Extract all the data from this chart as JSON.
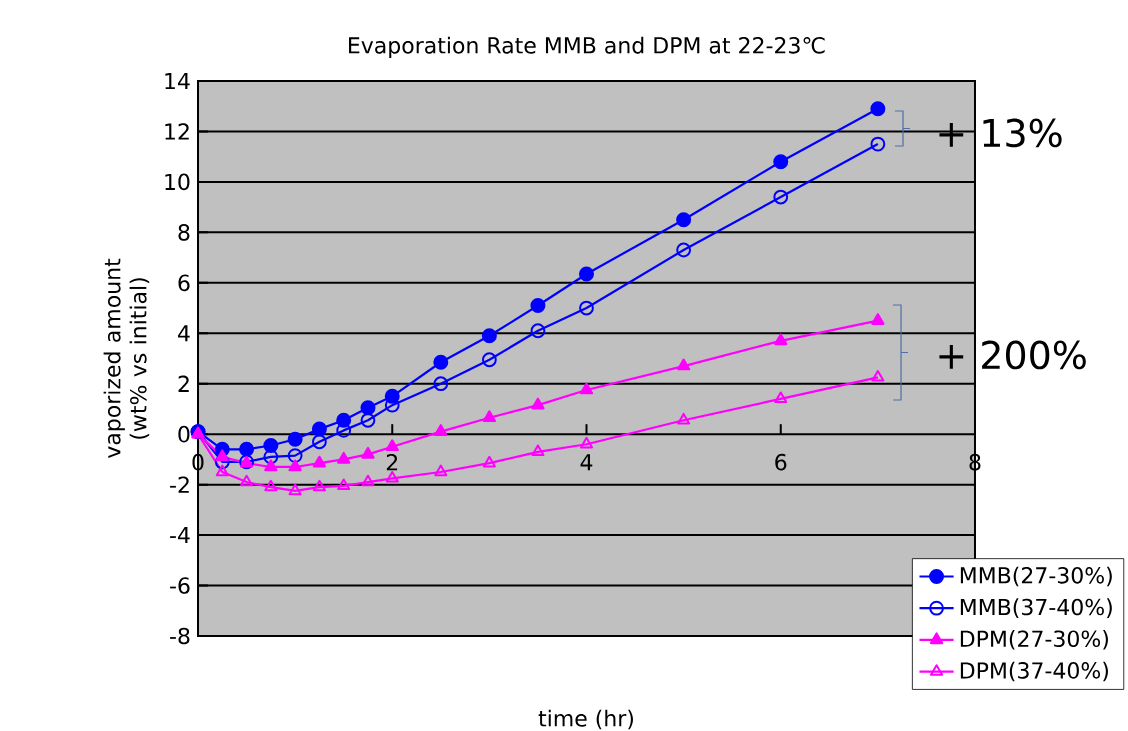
{
  "chart_data": {
    "type": "line",
    "title": "Evaporation Rate MMB and DPM at 22-23℃",
    "xlabel": "time (hr)",
    "ylabel": "vaporized amount (wt% vs initial)",
    "x": [
      0,
      0.25,
      0.5,
      0.75,
      1,
      1.25,
      1.5,
      1.75,
      2,
      2.5,
      3,
      3.5,
      4,
      5,
      6,
      7
    ],
    "series": [
      {
        "name": "MMB(27-30%)",
        "color": "#0000ff",
        "marker": "circle",
        "values": [
          0.1,
          -0.6,
          -0.6,
          -0.45,
          -0.2,
          0.2,
          0.55,
          1.05,
          1.5,
          2.85,
          3.9,
          5.1,
          6.35,
          8.5,
          10.8,
          12.9
        ]
      },
      {
        "name": "MMB(37-40%)",
        "color": "#0000ff",
        "marker": "circle",
        "values": [
          0.1,
          -1.1,
          -1.1,
          -0.9,
          -0.85,
          -0.3,
          0.15,
          0.55,
          1.15,
          2.0,
          2.95,
          4.1,
          5.0,
          7.3,
          9.4,
          11.5
        ]
      },
      {
        "name": "DPM(27-30%)",
        "color": "#ff00ff",
        "marker": "triangle",
        "values": [
          0,
          -0.9,
          -1.15,
          -1.3,
          -1.3,
          -1.15,
          -1.0,
          -0.8,
          -0.5,
          0.1,
          0.65,
          1.15,
          1.75,
          2.7,
          3.7,
          4.5
        ]
      },
      {
        "name": "DPM(37-40%)",
        "color": "#ff00ff",
        "marker": "triangle",
        "values": [
          0,
          -1.5,
          -1.9,
          -2.1,
          -2.25,
          -2.1,
          -2.05,
          -1.9,
          -1.75,
          -1.5,
          -1.15,
          -0.7,
          -0.4,
          0.55,
          1.4,
          2.25
        ]
      }
    ],
    "xlim": [
      0,
      8
    ],
    "ylim": [
      -8,
      14
    ],
    "xticks": [
      0,
      2,
      4,
      6,
      8
    ],
    "yticks": [
      -8,
      -6,
      -4,
      -2,
      0,
      2,
      4,
      6,
      8,
      10,
      12,
      14
    ],
    "grid": "y",
    "legend": "bottom right",
    "line_style": "solid",
    "annotations": [
      "+ 13%",
      "+ 200%"
    ]
  }
}
